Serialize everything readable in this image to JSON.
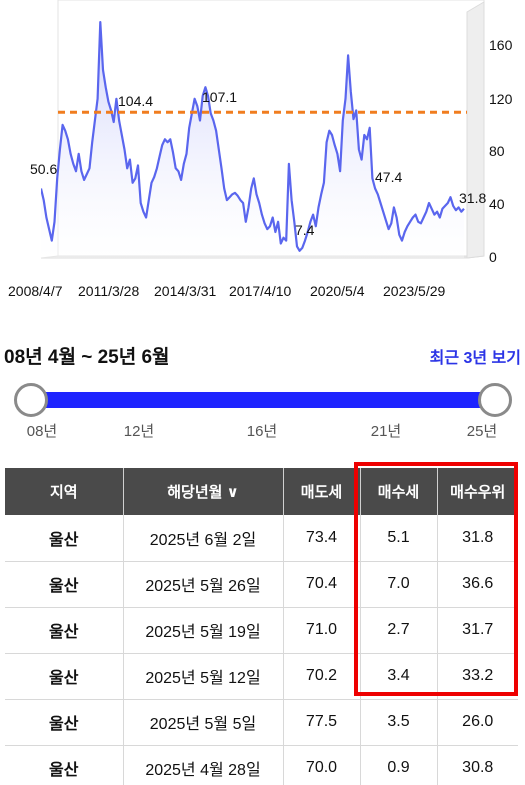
{
  "chart_data": {
    "type": "area",
    "x_tick_labels": [
      "2008/4/7",
      "2011/3/28",
      "2014/3/31",
      "2017/4/10",
      "2020/5/4",
      "2023/5/29"
    ],
    "y_ticks": [
      0,
      40,
      80,
      120,
      160
    ],
    "ylim": [
      0,
      170
    ],
    "reference_line": 100,
    "colors": {
      "line": "#5a66ee",
      "fill_top": "#c9cdfa",
      "reference": "#f07d1f"
    },
    "grid": false,
    "annotations": [
      {
        "text": "50.6",
        "x": "2008/4/7",
        "y": 50.6
      },
      {
        "text": "104.4",
        "x": "2011/3/28",
        "y": 104.4
      },
      {
        "text": "107.1",
        "x": "2014/3/31",
        "y": 107.1
      },
      {
        "text": "7.4",
        "x": "2017/4/10",
        "y": 7.4
      },
      {
        "text": "47.4",
        "x": "2020/5/4",
        "y": 47.4
      },
      {
        "text": "31.8",
        "x": "2025/6/2",
        "y": 31.8
      }
    ],
    "series": [
      {
        "values": [
          48,
          40,
          28,
          20,
          12,
          25,
          55,
          75,
          92,
          88,
          82,
          72,
          65,
          60,
          72,
          60,
          54,
          58,
          62,
          80,
          95,
          110,
          163,
          130,
          118,
          108,
          102,
          94,
          110,
          95,
          85,
          75,
          62,
          68,
          52,
          55,
          64,
          38,
          32,
          28,
          40,
          52,
          56,
          62,
          70,
          78,
          82,
          80,
          82,
          73,
          62,
          60,
          54,
          65,
          72,
          90,
          100,
          110,
          105,
          95,
          112,
          118,
          112,
          100,
          95,
          88,
          75,
          62,
          48,
          40,
          42,
          44,
          45,
          43,
          40,
          38,
          25,
          35,
          48,
          55,
          44,
          38,
          30,
          24,
          20,
          22,
          28,
          18,
          25,
          10,
          14,
          12,
          65,
          40,
          25,
          8,
          5,
          7,
          12,
          18,
          25,
          30,
          22,
          35,
          44,
          52,
          80,
          88,
          85,
          78,
          72,
          60,
          95,
          110,
          140,
          115,
          96,
          102,
          75,
          68,
          85,
          82,
          90,
          55,
          48,
          44,
          38,
          32,
          26,
          20,
          24,
          35,
          28,
          16,
          12,
          18,
          22,
          25,
          28,
          30,
          25,
          24,
          28,
          32,
          38,
          34,
          30,
          32,
          28,
          34,
          36,
          38,
          42,
          36,
          33,
          35,
          32,
          34
        ]
      }
    ]
  },
  "range": {
    "title": "08년 4월 ~ 25년 6월",
    "recent_link": "최근 3년 보기",
    "ticks": [
      "08년",
      "12년",
      "16년",
      "21년",
      "25년"
    ]
  },
  "table": {
    "headers": [
      "지역",
      "해당년월 ∨",
      "매도세",
      "매수세",
      "매수우위"
    ],
    "rows": [
      [
        "울산",
        "2025년 6월 2일",
        "73.4",
        "5.1",
        "31.8"
      ],
      [
        "울산",
        "2025년 5월 26일",
        "70.4",
        "7.0",
        "36.6"
      ],
      [
        "울산",
        "2025년 5월 19일",
        "71.0",
        "2.7",
        "31.7"
      ],
      [
        "울산",
        "2025년 5월 12일",
        "70.2",
        "3.4",
        "33.2"
      ],
      [
        "울산",
        "2025년 5월 5일",
        "77.5",
        "3.5",
        "26.0"
      ],
      [
        "울산",
        "2025년 4월 28일",
        "70.0",
        "0.9",
        "30.8"
      ]
    ]
  }
}
